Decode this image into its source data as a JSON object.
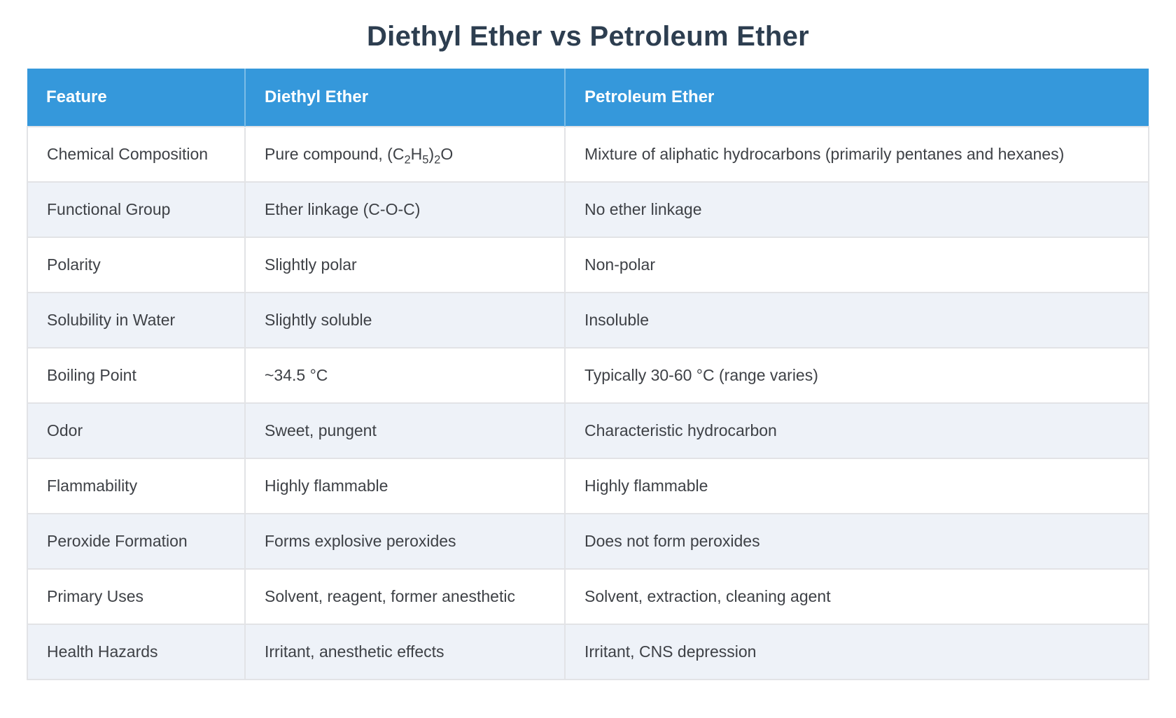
{
  "title": "Diethyl Ether vs Petroleum Ether",
  "colors": {
    "header_bg": "#3598db",
    "header_text": "#ffffff",
    "row_bg": "#ffffff",
    "row_alt_bg": "#eef2f8",
    "border": "#e2e3e6",
    "title_text": "#2d3e50",
    "cell_text": "#3e4146"
  },
  "chart_data": {
    "type": "table",
    "title": "Diethyl Ether vs Petroleum Ether",
    "columns": [
      "Feature",
      "Diethyl Ether",
      "Petroleum Ether"
    ],
    "rows": [
      {
        "feature": "Chemical Composition",
        "diethyl": "Pure compound, (C_{2}H_{5})_{2}O",
        "petroleum": "Mixture of aliphatic hydrocarbons (primarily pentanes and hexanes)"
      },
      {
        "feature": "Functional Group",
        "diethyl": "Ether linkage (C-O-C)",
        "petroleum": "No ether linkage"
      },
      {
        "feature": "Polarity",
        "diethyl": "Slightly polar",
        "petroleum": "Non-polar"
      },
      {
        "feature": "Solubility in Water",
        "diethyl": "Slightly soluble",
        "petroleum": "Insoluble"
      },
      {
        "feature": "Boiling Point",
        "diethyl": "~34.5 °C",
        "petroleum": "Typically 30-60 °C (range varies)"
      },
      {
        "feature": "Odor",
        "diethyl": "Sweet, pungent",
        "petroleum": "Characteristic hydrocarbon"
      },
      {
        "feature": "Flammability",
        "diethyl": "Highly flammable",
        "petroleum": "Highly flammable"
      },
      {
        "feature": "Peroxide Formation",
        "diethyl": "Forms explosive peroxides",
        "petroleum": "Does not form peroxides"
      },
      {
        "feature": "Primary Uses",
        "diethyl": "Solvent, reagent, former anesthetic",
        "petroleum": "Solvent, extraction, cleaning agent"
      },
      {
        "feature": "Health Hazards",
        "diethyl": "Irritant, anesthetic effects",
        "petroleum": "Irritant, CNS depression"
      }
    ]
  }
}
